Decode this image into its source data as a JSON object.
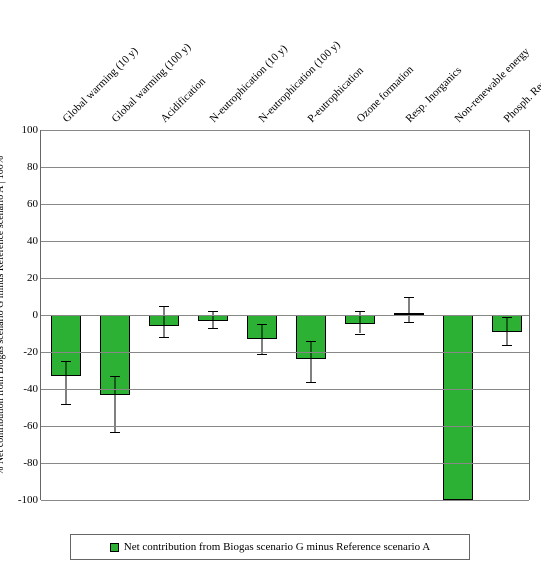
{
  "chart": {
    "type": "bar",
    "background_color": "#ffffff",
    "grid_color": "#888888",
    "axis_color": "#666666",
    "bar_fill": "#2db135",
    "bar_border": "#000000",
    "error_color": "#000000",
    "font_family": "Georgia, serif",
    "label_fontsize": 11,
    "ylabel": "% Net contribution from Biogas scenario G minus Reference scenario A | 100%",
    "ylabel_fontsize": 10,
    "ylim": [
      -100,
      100
    ],
    "ytick_step": 20,
    "yticks": [
      100,
      80,
      60,
      40,
      20,
      0,
      -20,
      -40,
      -60,
      -80,
      -100
    ],
    "categories": [
      "Global warming (10 y)",
      "Global warming (100 y)",
      "Acidification",
      "N-eutrophication (10 y)",
      "N-eutrophication (100 y)",
      "P-eutrophication",
      "Ozone formation",
      "Resp. Inorganics",
      "Non-renewable energy",
      "Phosph. Resources"
    ],
    "values": [
      -33,
      -43,
      -6,
      -3,
      -13,
      -24,
      -5,
      1,
      -108,
      -9
    ],
    "err_low": [
      -48,
      -63,
      -12,
      -7,
      -21,
      -36,
      -10,
      -4,
      -108,
      -16
    ],
    "err_high": [
      -25,
      -33,
      5,
      2,
      -5,
      -14,
      2,
      10,
      -108,
      -1
    ],
    "legend_label": "Net contribution from Biogas scenario G minus Reference scenario A"
  }
}
